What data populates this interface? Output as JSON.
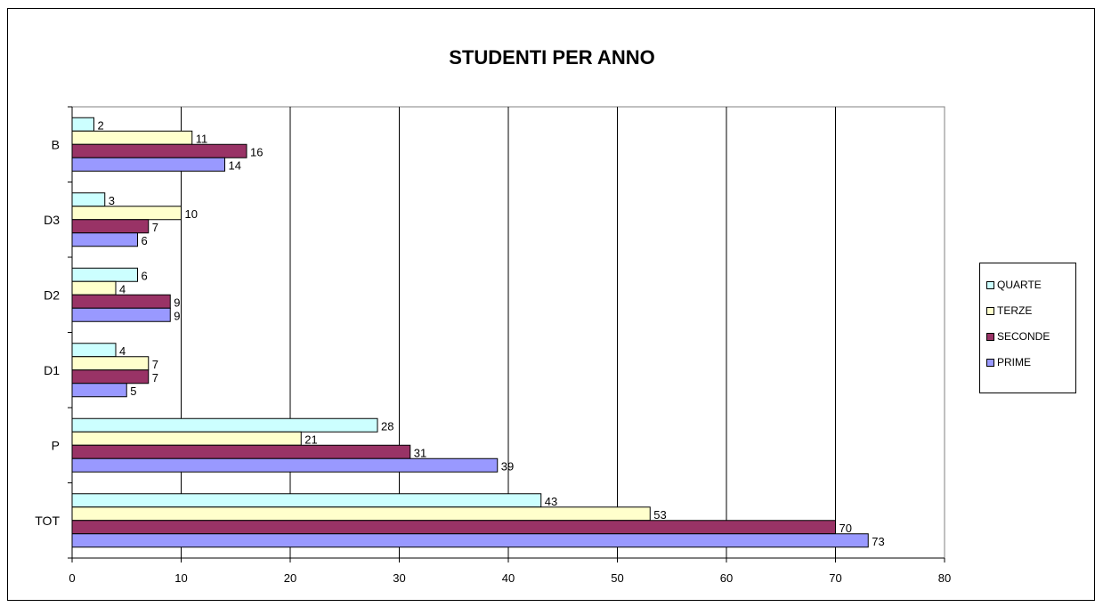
{
  "chart_data": {
    "type": "bar",
    "orientation": "horizontal",
    "title": "STUDENTI PER ANNO",
    "xlabel": "",
    "ylabel": "",
    "xlim": [
      0,
      80
    ],
    "x_ticks": [
      0,
      10,
      20,
      30,
      40,
      50,
      60,
      70,
      80
    ],
    "categories": [
      "B",
      "D3",
      "D2",
      "D1",
      "P",
      "TOT"
    ],
    "series": [
      {
        "name": "QUARTE",
        "color": "#ccffff",
        "values": [
          2,
          3,
          6,
          4,
          28,
          43
        ]
      },
      {
        "name": "TERZE",
        "color": "#ffffcc",
        "values": [
          11,
          10,
          4,
          7,
          21,
          53
        ]
      },
      {
        "name": "SECONDE",
        "color": "#993366",
        "values": [
          16,
          7,
          9,
          7,
          31,
          70
        ]
      },
      {
        "name": "PRIME",
        "color": "#9999ff",
        "values": [
          14,
          6,
          9,
          5,
          39,
          73
        ]
      }
    ],
    "legend_order": [
      "QUARTE",
      "TERZE",
      "SECONDE",
      "PRIME"
    ],
    "legend_position": "right",
    "gridlines": "vertical",
    "data_labels": true
  }
}
